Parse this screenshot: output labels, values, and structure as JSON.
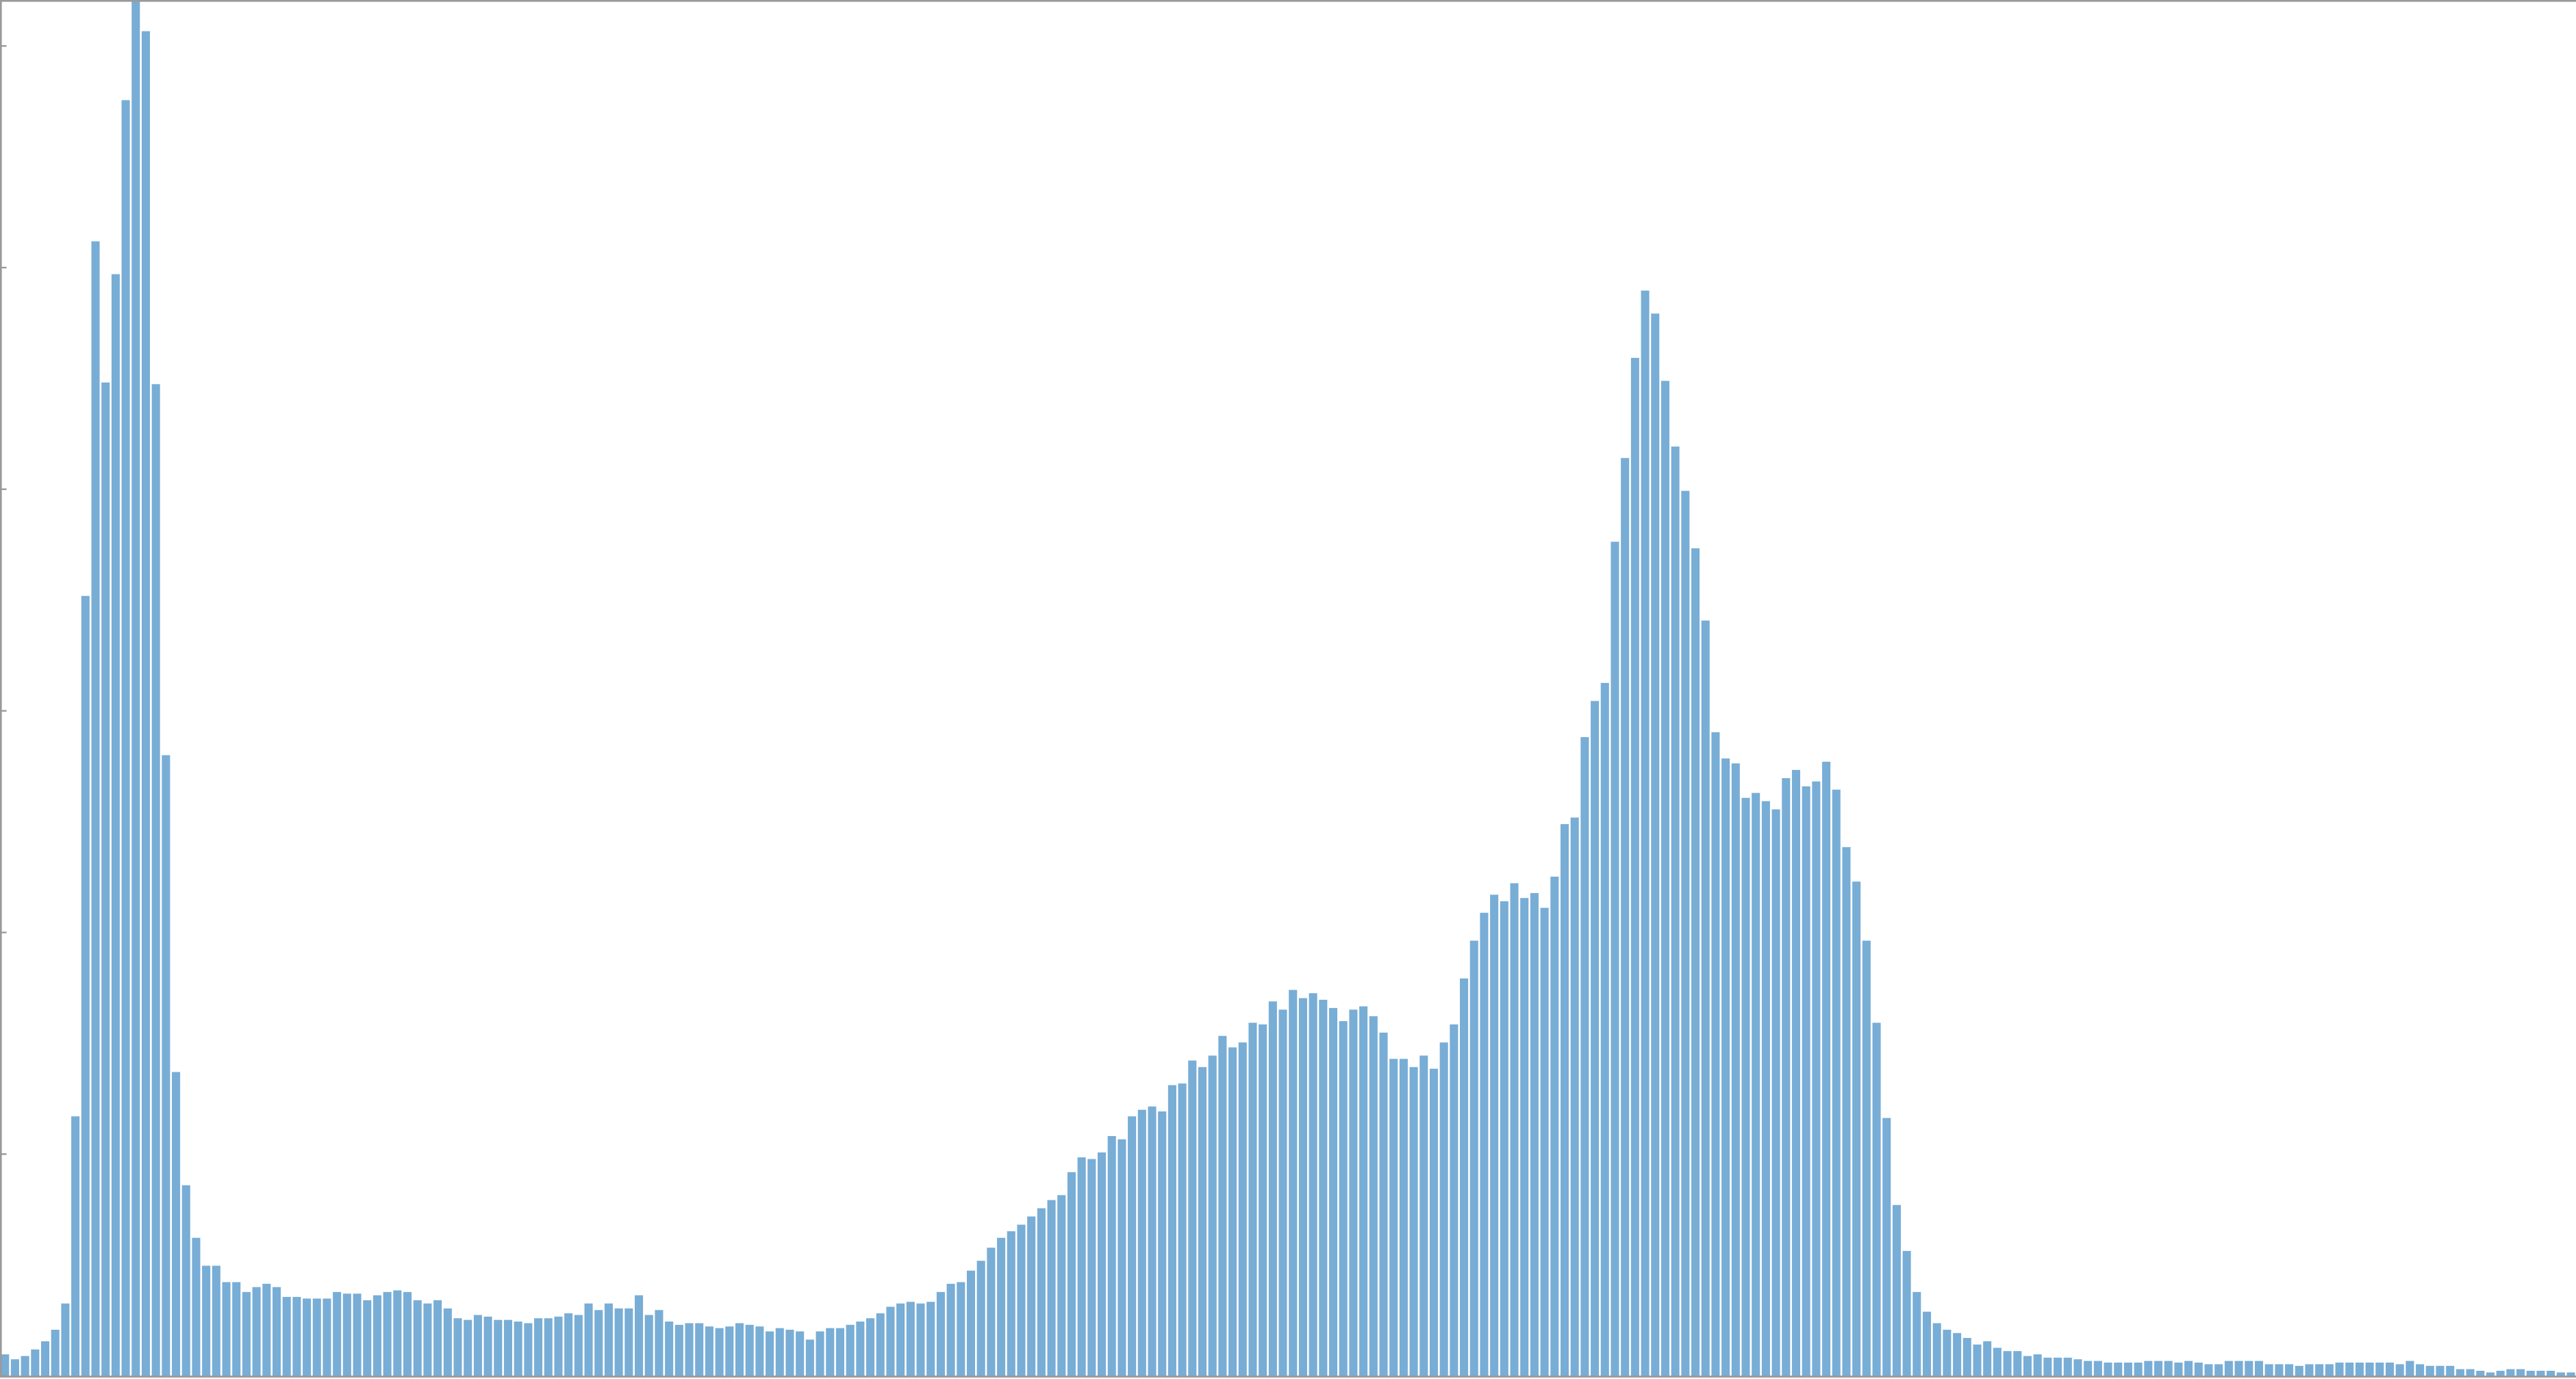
{
  "chart_data": {
    "type": "bar",
    "color": "#78add6",
    "ylim": [
      0,
      838
    ],
    "yticks": [
      0,
      135,
      270,
      405,
      540,
      675,
      810
    ],
    "values": [
      13,
      10,
      12,
      16,
      21,
      28,
      44,
      158,
      475,
      691,
      605,
      671,
      777,
      838,
      819,
      604,
      378,
      185,
      116,
      84,
      67,
      67,
      57,
      57,
      51,
      54,
      56,
      54,
      48,
      48,
      47,
      47,
      47,
      51,
      50,
      50,
      46,
      49,
      51,
      52,
      51,
      46,
      44,
      46,
      41,
      35,
      34,
      37,
      36,
      34,
      34,
      33,
      32,
      35,
      35,
      36,
      38,
      37,
      44,
      40,
      44,
      41,
      41,
      49,
      37,
      40,
      33,
      31,
      32,
      32,
      30,
      29,
      30,
      32,
      31,
      30,
      27,
      29,
      28,
      27,
      22,
      27,
      29,
      29,
      31,
      33,
      35,
      38,
      42,
      44,
      45,
      44,
      45,
      51,
      56,
      57,
      64,
      70,
      78,
      84,
      88,
      92,
      97,
      102,
      107,
      110,
      124,
      133,
      132,
      136,
      146,
      144,
      158,
      162,
      164,
      161,
      177,
      178,
      192,
      188,
      195,
      207,
      200,
      203,
      215,
      214,
      228,
      223,
      235,
      230,
      233,
      229,
      224,
      216,
      223,
      225,
      219,
      209,
      193,
      193,
      188,
      195,
      187,
      203,
      214,
      242,
      265,
      282,
      293,
      289,
      300,
      291,
      294,
      285,
      304,
      336,
      340,
      389,
      411,
      422,
      508,
      559,
      620,
      661,
      647,
      606,
      566,
      539,
      504,
      460,
      392,
      376,
      373,
      352,
      355,
      350,
      345,
      364,
      369,
      359,
      362,
      374,
      357,
      322,
      301,
      265,
      215,
      157,
      104,
      76,
      51,
      39,
      32,
      28,
      26,
      23,
      19,
      21,
      17,
      15,
      15,
      12,
      13,
      11,
      11,
      11,
      10,
      9,
      9,
      8,
      8,
      8,
      8,
      9,
      9,
      9,
      8,
      9,
      8,
      7,
      7,
      9,
      9,
      9,
      9,
      7,
      7,
      7,
      6,
      7,
      7,
      7,
      8,
      8,
      8,
      8,
      8,
      8,
      7,
      9,
      7,
      6,
      6,
      6,
      4,
      4,
      3,
      2,
      3,
      4,
      4,
      3,
      3,
      3,
      2,
      2
    ]
  }
}
